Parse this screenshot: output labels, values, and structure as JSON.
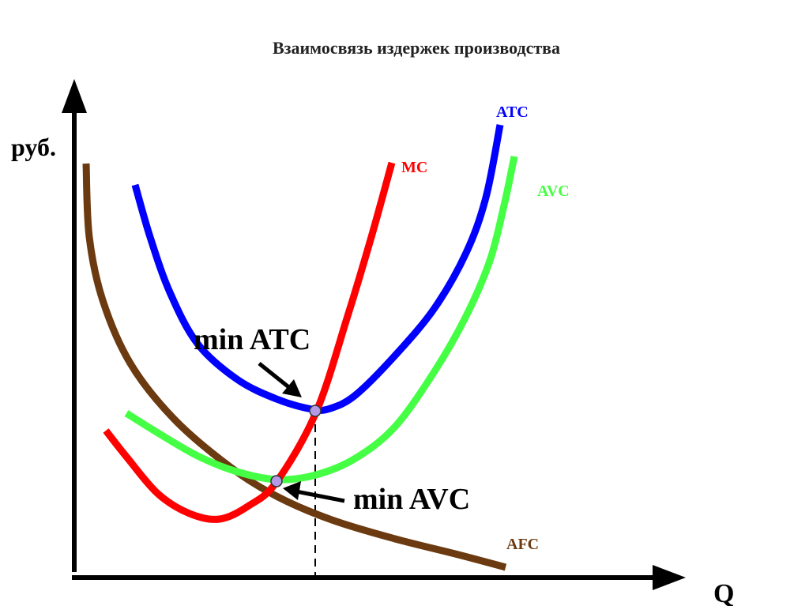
{
  "chart_data": {
    "type": "line",
    "title": "Взаимосвязь издержек производства",
    "xlabel": "Q",
    "ylabel": "руб.",
    "grid": false,
    "legend": "none",
    "series": [
      {
        "name": "ATC",
        "color": "#0000ff",
        "points": [
          [
            171,
            234
          ],
          [
            190,
            300
          ],
          [
            215,
            370
          ],
          [
            250,
            435
          ],
          [
            300,
            480
          ],
          [
            350,
            505
          ],
          [
            395,
            518
          ],
          [
            418,
            517
          ],
          [
            450,
            500
          ],
          [
            500,
            450
          ],
          [
            550,
            390
          ],
          [
            590,
            320
          ],
          [
            615,
            250
          ],
          [
            633,
            158
          ]
        ]
      },
      {
        "name": "AVC",
        "color": "#44ff44",
        "points": [
          [
            160,
            523
          ],
          [
            200,
            548
          ],
          [
            250,
            577
          ],
          [
            300,
            597
          ],
          [
            351,
            607
          ],
          [
            400,
            601
          ],
          [
            450,
            580
          ],
          [
            500,
            540
          ],
          [
            550,
            470
          ],
          [
            590,
            400
          ],
          [
            620,
            330
          ],
          [
            638,
            260
          ],
          [
            651,
            198
          ]
        ]
      },
      {
        "name": "MC",
        "color": "#ff0000",
        "points": [
          [
            134,
            545
          ],
          [
            160,
            578
          ],
          [
            200,
            625
          ],
          [
            240,
            650
          ],
          [
            278,
            657
          ],
          [
            315,
            640
          ],
          [
            350,
            610
          ],
          [
            400,
            522
          ],
          [
            440,
            400
          ],
          [
            470,
            300
          ],
          [
            496,
            206
          ]
        ]
      },
      {
        "name": "AFC",
        "color": "#6b3a10",
        "points": [
          [
            109,
            207
          ],
          [
            113,
            300
          ],
          [
            130,
            380
          ],
          [
            165,
            460
          ],
          [
            220,
            530
          ],
          [
            290,
            590
          ],
          [
            350,
            628
          ],
          [
            420,
            658
          ],
          [
            500,
            682
          ],
          [
            580,
            702
          ],
          [
            640,
            718
          ]
        ]
      }
    ],
    "annotations": [
      {
        "text": "min ATC",
        "point": [
          399,
          520
        ],
        "marker_color": "#b399e6"
      },
      {
        "text": "min AVC",
        "point": [
          350,
          609
        ],
        "marker_color": "#b399e6"
      }
    ],
    "reference_line": {
      "x": 399,
      "from_y": 520,
      "style": "dashed"
    }
  }
}
